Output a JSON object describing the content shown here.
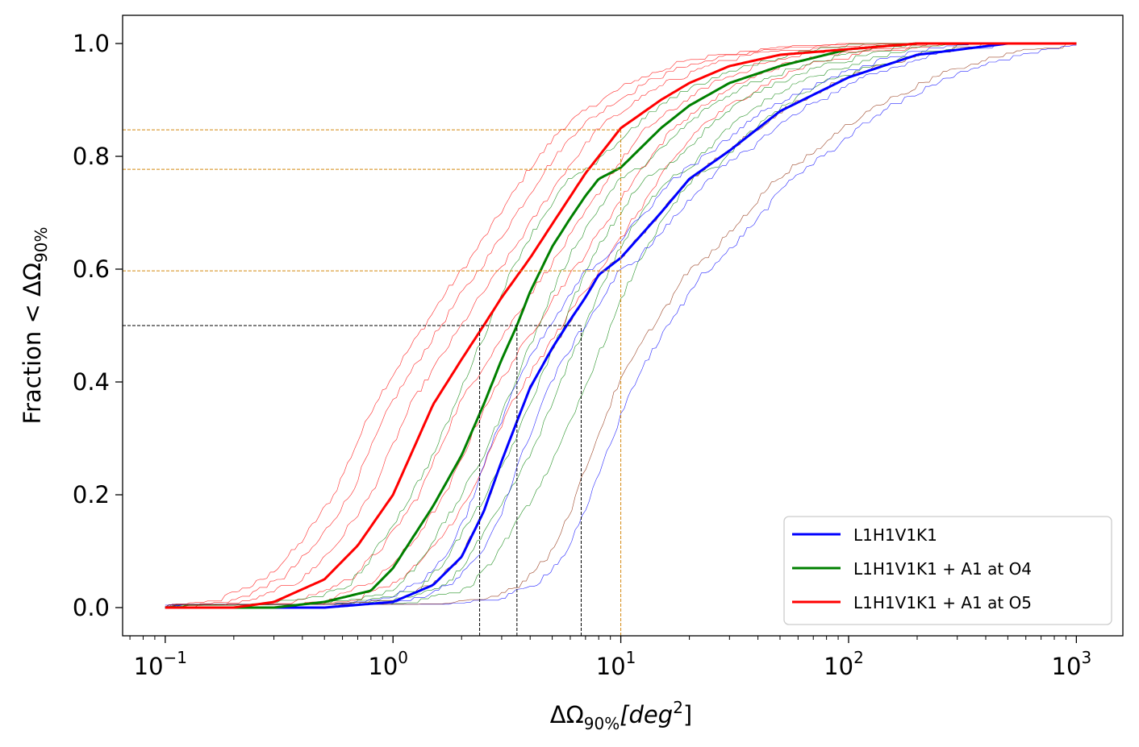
{
  "chart_data": {
    "type": "line",
    "x_scale": "log",
    "xlim": [
      0.065,
      1600
    ],
    "ylim": [
      -0.05,
      1.05
    ],
    "xlabel_main": "ΔΩ",
    "xlabel_sub": "90%",
    "xlabel_unit": "[deg",
    "xlabel_unit_sup": "2",
    "xlabel_close": "]",
    "ylabel_main": "Fraction < ΔΩ",
    "ylabel_sub": "90%",
    "x_ticks": [
      {
        "value": 0.1,
        "base": "10",
        "exp": "−1"
      },
      {
        "value": 1,
        "base": "10",
        "exp": "0"
      },
      {
        "value": 10,
        "base": "10",
        "exp": "1"
      },
      {
        "value": 100,
        "base": "10",
        "exp": "2"
      },
      {
        "value": 1000,
        "base": "10",
        "exp": "3"
      }
    ],
    "y_ticks": [
      {
        "value": 0.0,
        "label": "0.0"
      },
      {
        "value": 0.2,
        "label": "0.2"
      },
      {
        "value": 0.4,
        "label": "0.4"
      },
      {
        "value": 0.6,
        "label": "0.6"
      },
      {
        "value": 0.8,
        "label": "0.8"
      },
      {
        "value": 1.0,
        "label": "1.0"
      }
    ],
    "legend": {
      "position": "lower-right",
      "entries": [
        {
          "label": "L1H1V1K1",
          "color": "#0000ff"
        },
        {
          "label": "L1H1V1K1 + A1 at O4",
          "color": "#008000"
        },
        {
          "label": "L1H1V1K1 + A1 at O5",
          "color": "#ff0000"
        }
      ]
    },
    "series": [
      {
        "name": "L1H1V1K1",
        "color": "#0000ff",
        "x": [
          0.1,
          0.5,
          1.0,
          1.5,
          2.0,
          2.5,
          3.0,
          3.5,
          4.0,
          5.0,
          6.0,
          7.0,
          8.0,
          10.0,
          15.0,
          20.0,
          30.0,
          50.0,
          100.0,
          200.0,
          500.0,
          1000.0
        ],
        "y": [
          0.0,
          0.0,
          0.01,
          0.04,
          0.09,
          0.17,
          0.26,
          0.33,
          0.39,
          0.46,
          0.51,
          0.55,
          0.59,
          0.62,
          0.7,
          0.76,
          0.81,
          0.88,
          0.94,
          0.98,
          1.0,
          1.0
        ]
      },
      {
        "name": "L1H1V1K1 + A1 at O4",
        "color": "#008000",
        "x": [
          0.1,
          0.3,
          0.5,
          0.8,
          1.0,
          1.5,
          2.0,
          2.5,
          3.0,
          3.5,
          4.0,
          5.0,
          6.0,
          7.0,
          8.0,
          10.0,
          15.0,
          20.0,
          30.0,
          50.0,
          100.0,
          200.0,
          1000.0
        ],
        "y": [
          0.0,
          0.0,
          0.01,
          0.03,
          0.07,
          0.18,
          0.27,
          0.36,
          0.44,
          0.5,
          0.56,
          0.64,
          0.69,
          0.73,
          0.76,
          0.78,
          0.85,
          0.89,
          0.93,
          0.96,
          0.99,
          1.0,
          1.0
        ]
      },
      {
        "name": "L1H1V1K1 + A1 at O5",
        "color": "#ff0000",
        "x": [
          0.1,
          0.2,
          0.3,
          0.5,
          0.7,
          1.0,
          1.5,
          2.0,
          2.5,
          3.0,
          4.0,
          5.0,
          7.0,
          10.0,
          15.0,
          20.0,
          30.0,
          50.0,
          100.0,
          200.0,
          1000.0
        ],
        "y": [
          0.0,
          0.0,
          0.01,
          0.05,
          0.11,
          0.2,
          0.36,
          0.44,
          0.5,
          0.55,
          0.62,
          0.68,
          0.77,
          0.85,
          0.9,
          0.93,
          0.96,
          0.98,
          0.99,
          1.0,
          1.0
        ]
      }
    ],
    "thin_series": [
      {
        "color": "#ff0000",
        "x_scale": 0.55
      },
      {
        "color": "#ff0000",
        "x_scale": 0.65
      },
      {
        "color": "#ff0000",
        "x_scale": 0.8
      },
      {
        "color": "#ff0000",
        "x_scale": 1.3
      },
      {
        "color": "#ff0000",
        "x_scale": 1.7
      },
      {
        "color": "#ff0000",
        "x_scale": 2.2
      },
      {
        "color": "#008000",
        "x_scale": 0.75
      },
      {
        "color": "#008000",
        "x_scale": 1.25
      },
      {
        "color": "#008000",
        "x_scale": 1.6
      },
      {
        "color": "#008000",
        "x_scale": 2.0
      },
      {
        "color": "#008000",
        "x_scale": 2.6
      },
      {
        "color": "#0000ff",
        "x_scale": 0.85
      },
      {
        "color": "#0000ff",
        "x_scale": 1.2
      },
      {
        "color": "#0000ff",
        "x_scale": 2.8
      },
      {
        "color": "#8b2500",
        "x_scale": 1.0
      },
      {
        "color": "#8b2500",
        "x_scale": 2.4
      }
    ],
    "reference_lines": [
      {
        "type": "h",
        "y": 0.5,
        "x_to": 6.7,
        "color": "#000000"
      },
      {
        "type": "v",
        "x": 2.4,
        "y_to": 0.5,
        "color": "#000000"
      },
      {
        "type": "v",
        "x": 3.5,
        "y_to": 0.5,
        "color": "#000000"
      },
      {
        "type": "v",
        "x": 6.7,
        "y_to": 0.5,
        "color": "#000000"
      },
      {
        "type": "h",
        "y": 0.847,
        "x_to": 10,
        "color": "#d4880f"
      },
      {
        "type": "h",
        "y": 0.777,
        "x_to": 10,
        "color": "#d4880f"
      },
      {
        "type": "h",
        "y": 0.597,
        "x_to": 10,
        "color": "#d4880f"
      },
      {
        "type": "v",
        "x": 10,
        "y_to": 0.847,
        "color": "#d4880f"
      }
    ]
  }
}
